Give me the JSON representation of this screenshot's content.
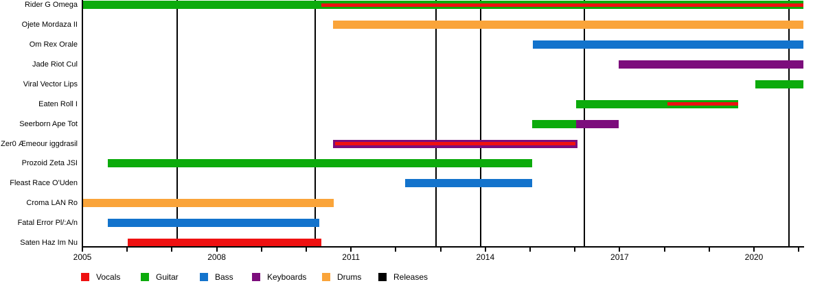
{
  "page": {
    "background": "#ffffff"
  },
  "chart_data": {
    "type": "gantt",
    "title": "",
    "subtitle": "",
    "legend": [
      {
        "label": "Vocals",
        "color": "#ee1111"
      },
      {
        "label": "Guitar",
        "color": "#0cab0c"
      },
      {
        "label": "Bass",
        "color": "#1373cc"
      },
      {
        "label": "Keyboards",
        "color": "#7c0d7c"
      },
      {
        "label": "Drums",
        "color": "#faa43a"
      },
      {
        "label": "Releases",
        "color": "#000000"
      }
    ],
    "x_axis": {
      "min_year": 2005,
      "max_year": 2021.1,
      "labeled_years": [
        2005,
        2008,
        2011,
        2014,
        2017,
        2020
      ],
      "minor_tick_every_years": 1,
      "grid": false
    },
    "members": [
      {
        "name": "Rider G Omega",
        "segments": [
          {
            "role": "Guitar",
            "start": 2005.0,
            "end": 2021.1
          }
        ],
        "overlays": [
          {
            "role": "Vocals",
            "start": 2010.34,
            "end": 2021.1
          }
        ]
      },
      {
        "name": "Ojete Mordaza II",
        "segments": [
          {
            "role": "Drums",
            "start": 2010.6,
            "end": 2021.1
          }
        ],
        "overlays": []
      },
      {
        "name": "Om Rex Orale",
        "segments": [
          {
            "role": "Bass",
            "start": 2015.06,
            "end": 2021.1
          }
        ],
        "overlays": []
      },
      {
        "name": "Jade Riot Cul",
        "segments": [
          {
            "role": "Keyboards",
            "start": 2016.98,
            "end": 2021.1
          }
        ],
        "overlays": []
      },
      {
        "name": "Viral Vector Lips",
        "segments": [
          {
            "role": "Guitar",
            "start": 2020.03,
            "end": 2021.1
          }
        ],
        "overlays": []
      },
      {
        "name": "Eaten Roll I",
        "segments": [
          {
            "role": "Guitar",
            "start": 2016.03,
            "end": 2019.65
          }
        ],
        "overlays": [
          {
            "role": "Vocals",
            "start": 2018.07,
            "end": 2019.65
          }
        ]
      },
      {
        "name": "Seerborn Ape Tot",
        "segments": [
          {
            "role": "Guitar",
            "start": 2015.05,
            "end": 2016.03
          },
          {
            "role": "Keyboards",
            "start": 2016.03,
            "end": 2016.98
          }
        ],
        "overlays": []
      },
      {
        "name": "Zer0 Æmeour iggdrasil",
        "segments": [
          {
            "role": "Keyboards",
            "start": 2010.6,
            "end": 2016.06
          }
        ],
        "overlays": [
          {
            "role": "Vocals",
            "start": 2010.64,
            "end": 2016.02
          }
        ]
      },
      {
        "name": "Prozoid Zeta JSI",
        "segments": [
          {
            "role": "Guitar",
            "start": 2005.57,
            "end": 2015.05
          }
        ],
        "overlays": []
      },
      {
        "name": "Fleast Race O'Uden",
        "segments": [
          {
            "role": "Bass",
            "start": 2012.21,
            "end": 2015.05
          }
        ],
        "overlays": []
      },
      {
        "name": "Croma LAN Ro",
        "segments": [
          {
            "role": "Drums",
            "start": 2005.0,
            "end": 2010.61
          }
        ],
        "overlays": []
      },
      {
        "name": "Fatal Error Pl/:A/n",
        "segments": [
          {
            "role": "Bass",
            "start": 2005.57,
            "end": 2010.29
          }
        ],
        "overlays": []
      },
      {
        "name": "Saten Haz Im Nu",
        "segments": [
          {
            "role": "Vocals",
            "start": 2006.01,
            "end": 2010.34
          }
        ],
        "overlays": []
      }
    ],
    "release_lines_years": [
      2007.12,
      2010.2,
      2012.9,
      2013.9,
      2016.21,
      2020.78
    ]
  }
}
